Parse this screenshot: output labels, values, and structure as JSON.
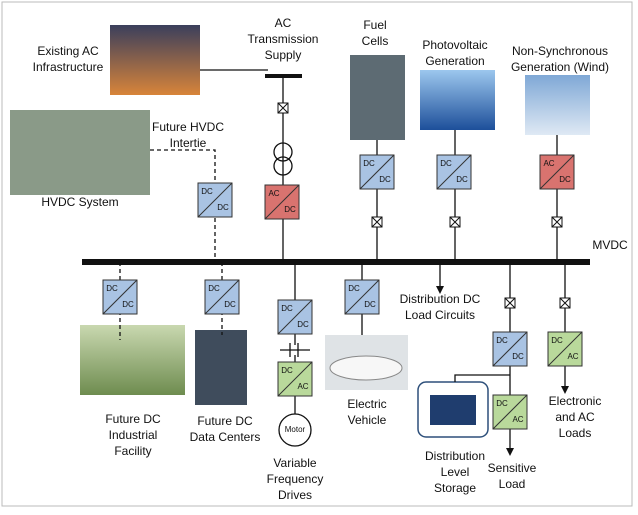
{
  "labels": {
    "existing_ac": [
      "Existing AC",
      "Infrastructure"
    ],
    "ac_supply": [
      "AC",
      "Transmission",
      "Supply"
    ],
    "fuel": [
      "Fuel",
      "Cells"
    ],
    "pv": [
      "Photovoltaic",
      "Generation"
    ],
    "wind": [
      "Non-Synchronous",
      "Generation (Wind)"
    ],
    "intertie": [
      "Future HVDC",
      "Intertie"
    ],
    "hvdc": [
      "HVDC System"
    ],
    "mvdc": [
      "MVDC"
    ],
    "dist_dc": [
      "Distribution DC",
      "Load Circuits"
    ],
    "industrial": [
      "Future DC",
      "Industrial",
      "Facility"
    ],
    "datacenter": [
      "Future DC",
      "Data Centers"
    ],
    "vfd": [
      "Variable",
      "Frequency",
      "Drives"
    ],
    "ev": [
      "Electric",
      "Vehicle"
    ],
    "storage": [
      "Distribution",
      "Level",
      "Storage"
    ],
    "sensitive": [
      "Sensitive",
      "Load"
    ],
    "electronic": [
      "Electronic",
      "and AC",
      "Loads"
    ]
  },
  "motor": "Motor",
  "converters": [
    {
      "top": "AC",
      "bottom": "DC",
      "color": "#d9736f"
    },
    {
      "top": "DC",
      "bottom": "DC",
      "color": "#a9c3e3"
    },
    {
      "top": "DC",
      "bottom": "DC",
      "color": "#a9c3e3"
    },
    {
      "top": "AC",
      "bottom": "DC",
      "color": "#d9736f"
    },
    {
      "top": "DC",
      "bottom": "DC",
      "color": "#a9c3e3"
    },
    {
      "top": "DC",
      "bottom": "DC",
      "color": "#a9c3e3"
    },
    {
      "top": "DC",
      "bottom": "DC",
      "color": "#a9c3e3"
    },
    {
      "top": "DC",
      "bottom": "DC",
      "color": "#a9c3e3"
    },
    {
      "top": "DC",
      "bottom": "AC",
      "color": "#b9d99b"
    },
    {
      "top": "DC",
      "bottom": "DC",
      "color": "#a9c3e3"
    },
    {
      "top": "DC",
      "bottom": "DC",
      "color": "#a9c3e3"
    },
    {
      "top": "DC",
      "bottom": "AC",
      "color": "#b9d99b"
    },
    {
      "top": "DC",
      "bottom": "AC",
      "color": "#b9d99b"
    }
  ]
}
